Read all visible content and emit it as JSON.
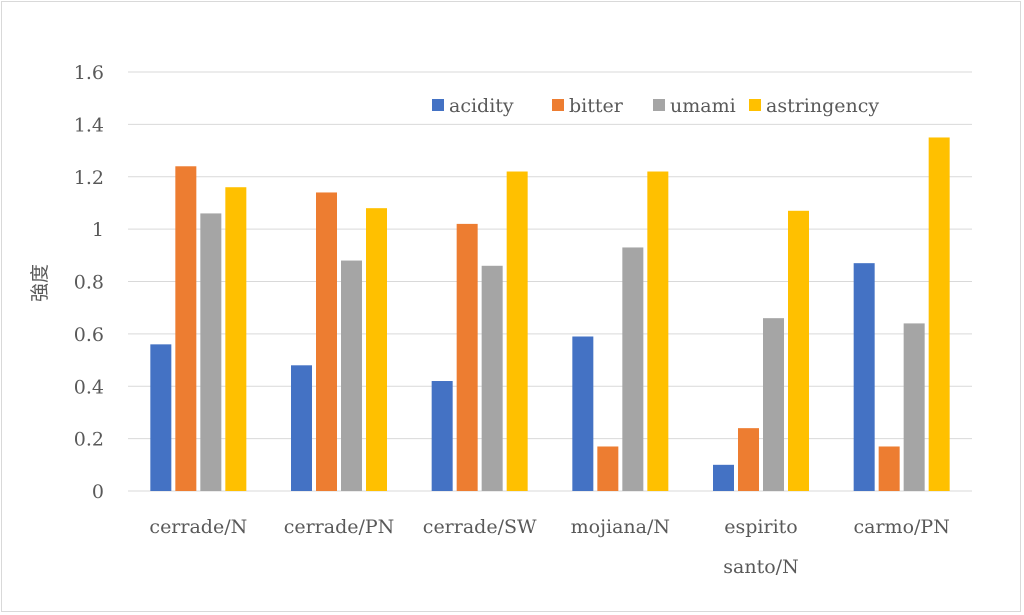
{
  "chart_data": {
    "type": "bar",
    "title": "",
    "xlabel": "",
    "ylabel": "強度",
    "ylim": [
      0,
      1.6
    ],
    "yticks": [
      "0",
      "0.2",
      "0.4",
      "0.6",
      "0.8",
      "1",
      "1.2",
      "1.4",
      "1.6"
    ],
    "grid": true,
    "legend_position": "top-right",
    "categories": [
      [
        "cerrade/N"
      ],
      [
        "cerrade/PN"
      ],
      [
        "cerrade/SW"
      ],
      [
        "mojiana/N"
      ],
      [
        "espirito",
        "santo/N"
      ],
      [
        "carmo/PN"
      ]
    ],
    "series": [
      {
        "name": "acidity",
        "color": "#4472c4",
        "values": [
          0.56,
          0.48,
          0.42,
          0.59,
          0.1,
          0.87
        ]
      },
      {
        "name": "bitter",
        "color": "#ed7d31",
        "values": [
          1.24,
          1.14,
          1.02,
          0.17,
          0.24,
          0.17
        ]
      },
      {
        "name": "umami",
        "color": "#a5a5a5",
        "values": [
          1.06,
          0.88,
          0.86,
          0.93,
          0.66,
          0.64
        ]
      },
      {
        "name": "astringency",
        "color": "#ffc000",
        "values": [
          1.16,
          1.08,
          1.22,
          1.22,
          1.07,
          1.35
        ]
      }
    ]
  }
}
